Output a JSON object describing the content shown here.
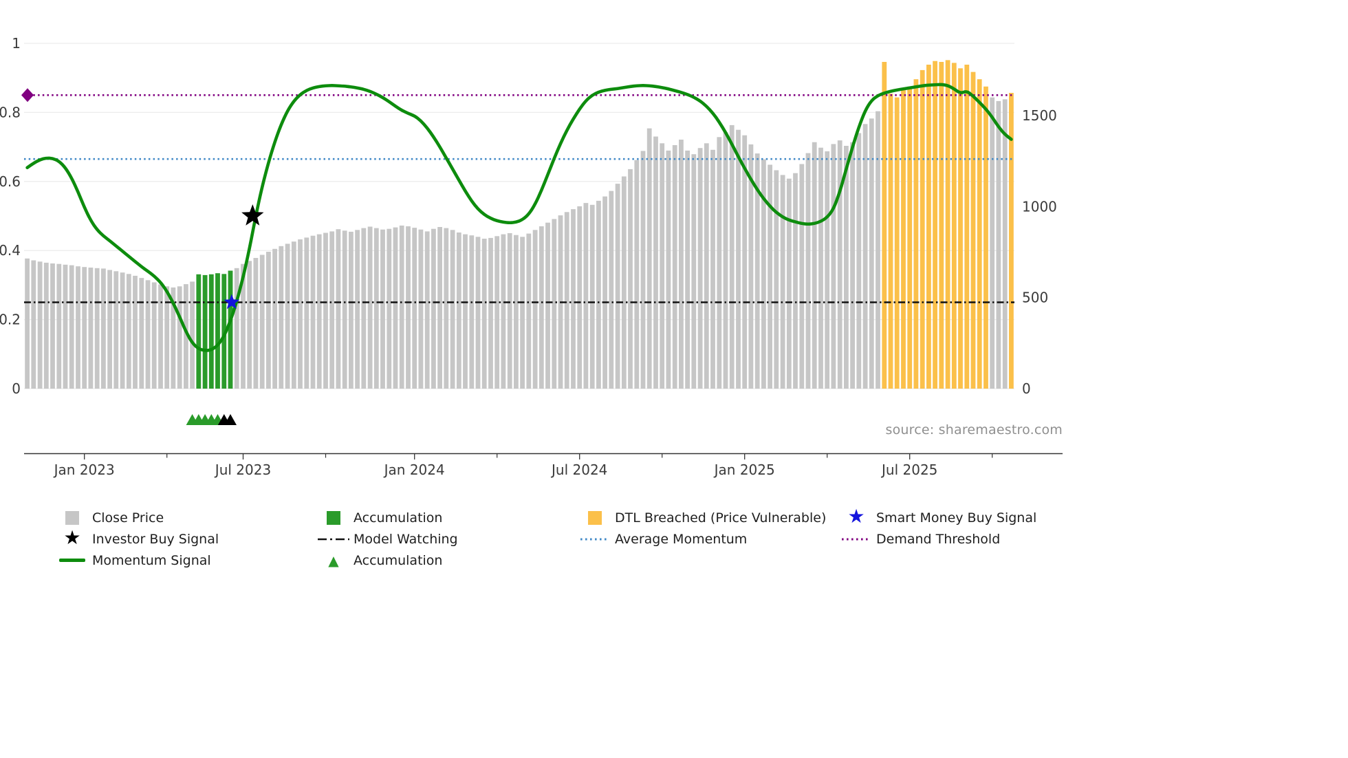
{
  "source_credit": "source: sharemaestro.com",
  "colors": {
    "bar_gray": "#c6c6c6",
    "bar_green": "#2a9b2a",
    "bar_orange": "#fbc04a",
    "momentum_green": "#0d8c0d",
    "demand_threshold_purple": "#800080",
    "average_momentum_blue": "#4189c7",
    "model_watching_black": "#111111",
    "smart_money_blue": "#1414dd",
    "investor_star_black": "#000000",
    "axis_text": "#3a3a3a",
    "grid": "#ececec",
    "source_text": "#8f8f8f"
  },
  "legend": {
    "close_price": "Close Price",
    "investor_buy": "Investor Buy Signal",
    "momentum": "Momentum Signal",
    "accumulation_bar": "Accumulation",
    "model_watching": "Model Watching",
    "accumulation_marker": "Accumulation",
    "dtl_breached": "DTL Breached (Price Vulnerable)",
    "avg_momentum": "Average Momentum",
    "smart_money": "Smart Money Buy Signal",
    "demand_threshold": "Demand Threshold"
  },
  "chart_data": {
    "type": "bar+line",
    "frequency": "weekly",
    "x_ticks": {
      "major": [
        {
          "week": 9,
          "label": "Jan 2023"
        },
        {
          "week": 34,
          "label": "Jul 2023"
        },
        {
          "week": 61,
          "label": "Jan 2024"
        },
        {
          "week": 87,
          "label": "Jul 2024"
        },
        {
          "week": 113,
          "label": "Jan 2025"
        },
        {
          "week": 139,
          "label": "Jul 2025"
        }
      ],
      "minor_weeks": [
        22,
        47,
        74,
        100,
        126,
        152
      ]
    },
    "left_axis": {
      "range": [
        0,
        1
      ],
      "ticks": [
        {
          "v": 0,
          "label": "0"
        },
        {
          "v": 0.2,
          "label": "0.2"
        },
        {
          "v": 0.4,
          "label": "0.4"
        },
        {
          "v": 0.6,
          "label": "0.6"
        },
        {
          "v": 0.8,
          "label": "0.8"
        },
        {
          "v": 1,
          "label": "1"
        }
      ]
    },
    "right_axis": {
      "range": [
        0,
        1900
      ],
      "ticks": [
        {
          "v": 0,
          "label": "0"
        },
        {
          "v": 500,
          "label": "500"
        },
        {
          "v": 1000,
          "label": "1000"
        },
        {
          "v": 1500,
          "label": "1500"
        }
      ]
    },
    "close_price": [
      715,
      705,
      698,
      692,
      688,
      685,
      681,
      678,
      672,
      668,
      665,
      662,
      660,
      652,
      645,
      638,
      630,
      620,
      608,
      596,
      584,
      572,
      562,
      556,
      562,
      574,
      588,
      628,
      624,
      628,
      634,
      630,
      648,
      662,
      685,
      702,
      718,
      735,
      752,
      768,
      783,
      796,
      808,
      820,
      830,
      840,
      848,
      856,
      864,
      876,
      868,
      862,
      872,
      882,
      890,
      882,
      874,
      878,
      886,
      896,
      892,
      884,
      874,
      864,
      878,
      888,
      882,
      872,
      858,
      848,
      842,
      834,
      824,
      828,
      838,
      848,
      854,
      844,
      834,
      852,
      872,
      892,
      912,
      932,
      952,
      970,
      986,
      1002,
      1020,
      1010,
      1032,
      1056,
      1086,
      1126,
      1166,
      1206,
      1256,
      1306,
      1430,
      1385,
      1348,
      1308,
      1338,
      1368,
      1308,
      1288,
      1322,
      1348,
      1312,
      1382,
      1408,
      1448,
      1422,
      1392,
      1342,
      1292,
      1260,
      1230,
      1200,
      1174,
      1154,
      1184,
      1234,
      1294,
      1354,
      1324,
      1304,
      1344,
      1364,
      1334,
      1354,
      1404,
      1454,
      1484,
      1524,
      1795,
      1620,
      1600,
      1640,
      1660,
      1700,
      1750,
      1780,
      1800,
      1795,
      1805,
      1790,
      1760,
      1780,
      1740,
      1700,
      1660,
      1600,
      1580,
      1590,
      1625
    ],
    "momentum": [
      0.64,
      0.653,
      0.663,
      0.668,
      0.667,
      0.659,
      0.64,
      0.61,
      0.57,
      0.525,
      0.487,
      0.46,
      0.442,
      0.428,
      0.413,
      0.398,
      0.383,
      0.368,
      0.353,
      0.34,
      0.326,
      0.308,
      0.282,
      0.248,
      0.208,
      0.165,
      0.132,
      0.115,
      0.11,
      0.112,
      0.125,
      0.152,
      0.196,
      0.252,
      0.322,
      0.405,
      0.5,
      0.585,
      0.655,
      0.715,
      0.765,
      0.805,
      0.833,
      0.852,
      0.864,
      0.871,
      0.875,
      0.877,
      0.878,
      0.877,
      0.876,
      0.874,
      0.871,
      0.867,
      0.861,
      0.853,
      0.843,
      0.831,
      0.818,
      0.806,
      0.797,
      0.79,
      0.776,
      0.755,
      0.729,
      0.7,
      0.668,
      0.636,
      0.604,
      0.572,
      0.543,
      0.52,
      0.504,
      0.493,
      0.486,
      0.482,
      0.48,
      0.482,
      0.489,
      0.505,
      0.534,
      0.574,
      0.62,
      0.667,
      0.71,
      0.748,
      0.781,
      0.81,
      0.834,
      0.85,
      0.859,
      0.864,
      0.867,
      0.869,
      0.872,
      0.875,
      0.877,
      0.878,
      0.877,
      0.875,
      0.872,
      0.868,
      0.863,
      0.858,
      0.852,
      0.844,
      0.833,
      0.818,
      0.798,
      0.772,
      0.742,
      0.708,
      0.672,
      0.638,
      0.606,
      0.576,
      0.55,
      0.528,
      0.51,
      0.497,
      0.488,
      0.483,
      0.478,
      0.476,
      0.478,
      0.484,
      0.496,
      0.52,
      0.57,
      0.636,
      0.7,
      0.758,
      0.806,
      0.835,
      0.849,
      0.856,
      0.861,
      0.865,
      0.868,
      0.871,
      0.874,
      0.877,
      0.879,
      0.88,
      0.881,
      0.878,
      0.868,
      0.855,
      0.862,
      0.847,
      0.829,
      0.81,
      0.786,
      0.758,
      0.736,
      0.722
    ],
    "bar_states": {
      "accumulation": {
        "from": 27,
        "to": 32
      },
      "dtl_breached": [
        {
          "from": 135,
          "to": 151
        },
        {
          "from": 155,
          "to": 155
        }
      ]
    },
    "reference_lines": {
      "demand_threshold": 0.85,
      "average_momentum": 0.665,
      "model_watching": 0.25
    },
    "signals": {
      "investor_buy": {
        "week": 35.5,
        "momentum": 0.5
      },
      "smart_money_buy": {
        "week": 32.2,
        "momentum": 0.25
      }
    },
    "below_axis_markers": {
      "green_triangle_weeks": [
        26,
        27,
        28,
        29,
        30
      ],
      "black_triangle_weeks": [
        31,
        32
      ]
    },
    "grid": "horizontal",
    "legend_position": "bottom"
  }
}
